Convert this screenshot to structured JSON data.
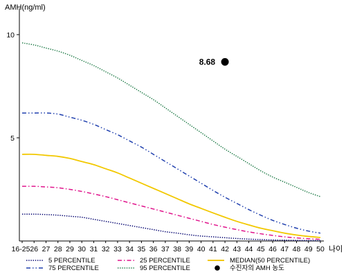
{
  "chart_data": {
    "type": "line",
    "ylabel": "AMH(ng/ml)",
    "xlabel": "나이",
    "ylim": [
      0,
      10.9
    ],
    "yticks": [
      5,
      10
    ],
    "grid": false,
    "legend_position": "bottom",
    "categories": [
      "16-25",
      "26",
      "27",
      "28",
      "29",
      "30",
      "31",
      "32",
      "33",
      "34",
      "35",
      "36",
      "37",
      "38",
      "39",
      "40",
      "41",
      "42",
      "43",
      "44",
      "45",
      "46",
      "47",
      "48",
      "49",
      "50"
    ],
    "series": [
      {
        "name": "5 PERCENTILE",
        "color": "#00006e",
        "style": "dotted",
        "values": [
          1.3,
          1.3,
          1.28,
          1.25,
          1.2,
          1.15,
          1.05,
          0.95,
          0.85,
          0.75,
          0.65,
          0.55,
          0.45,
          0.38,
          0.3,
          0.24,
          0.2,
          0.16,
          0.12,
          0.09,
          0.07,
          0.05,
          0.04,
          0.03,
          0.02,
          0.02
        ]
      },
      {
        "name": "25 PERCENTILE",
        "color": "#e0148c",
        "style": "dashdot",
        "values": [
          2.65,
          2.65,
          2.62,
          2.58,
          2.5,
          2.4,
          2.28,
          2.15,
          2.0,
          1.85,
          1.7,
          1.55,
          1.4,
          1.25,
          1.1,
          0.95,
          0.8,
          0.67,
          0.55,
          0.44,
          0.35,
          0.27,
          0.2,
          0.15,
          0.11,
          0.08
        ]
      },
      {
        "name": "MEDIAN(50 PERCENTILE)",
        "color": "#f2c800",
        "style": "solid",
        "values": [
          4.2,
          4.2,
          4.15,
          4.1,
          4.0,
          3.85,
          3.7,
          3.5,
          3.3,
          3.05,
          2.8,
          2.55,
          2.3,
          2.05,
          1.8,
          1.58,
          1.36,
          1.15,
          0.95,
          0.78,
          0.62,
          0.5,
          0.38,
          0.29,
          0.22,
          0.17
        ]
      },
      {
        "name": "75 PERCENTILE",
        "color": "#1f3fae",
        "style": "dashdotdot",
        "values": [
          6.2,
          6.2,
          6.2,
          6.15,
          6.0,
          5.85,
          5.65,
          5.4,
          5.15,
          4.85,
          4.55,
          4.2,
          3.85,
          3.5,
          3.15,
          2.8,
          2.45,
          2.12,
          1.82,
          1.52,
          1.25,
          1.0,
          0.8,
          0.62,
          0.48,
          0.38
        ]
      },
      {
        "name": "95 PERCENTILE",
        "color": "#1e7a46",
        "style": "dotted",
        "values": [
          9.6,
          9.5,
          9.35,
          9.2,
          9.0,
          8.75,
          8.5,
          8.2,
          7.9,
          7.55,
          7.2,
          6.85,
          6.45,
          6.05,
          5.65,
          5.25,
          4.85,
          4.45,
          4.1,
          3.75,
          3.4,
          3.1,
          2.85,
          2.6,
          2.35,
          2.15
        ]
      }
    ],
    "highlight": {
      "name": "수진자의 AMH 농도",
      "x": "42",
      "y": 8.68,
      "label": "8.68",
      "color": "#000000"
    }
  }
}
